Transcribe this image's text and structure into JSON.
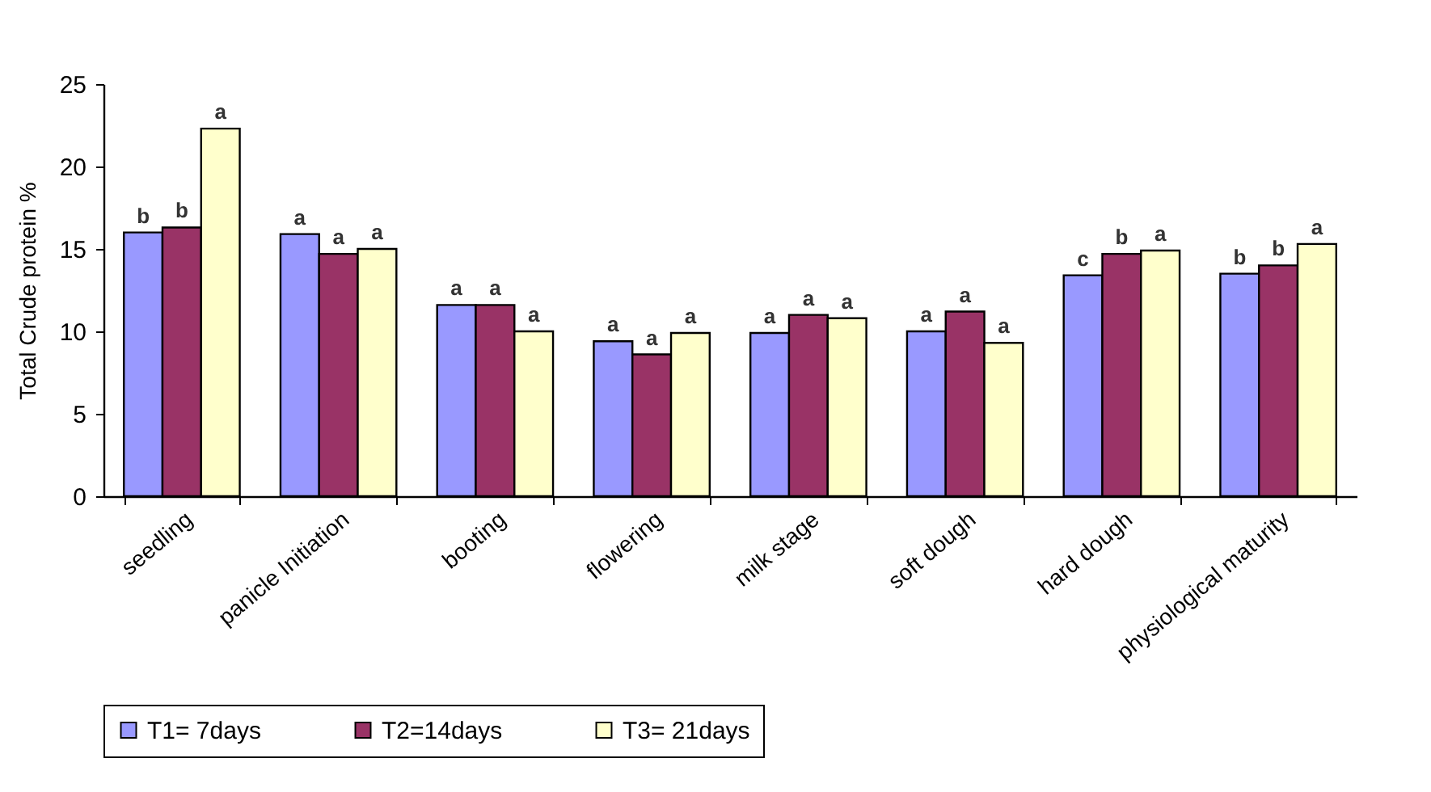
{
  "chart_data": {
    "type": "bar",
    "ylabel": "Total Crude protein %",
    "categories": [
      "seedling",
      "panicle Initiation",
      "booting",
      "flowering",
      "milk stage",
      "soft dough",
      "hard dough",
      "physiological maturity"
    ],
    "series": [
      {
        "name": "T1= 7days",
        "color": "#9999ff",
        "values": [
          16.0,
          15.9,
          11.6,
          9.4,
          9.9,
          10.0,
          13.4,
          13.5
        ],
        "value_labels": [
          "b",
          "a",
          "a",
          "a",
          "a",
          "a",
          "c",
          "b"
        ]
      },
      {
        "name": "T2=14days",
        "color": "#993366",
        "values": [
          16.3,
          14.7,
          11.6,
          8.6,
          11.0,
          11.2,
          14.7,
          14.0
        ],
        "value_labels": [
          "b",
          "a",
          "a",
          "a",
          "a",
          "a",
          "b",
          "b"
        ]
      },
      {
        "name": "T3= 21days",
        "color": "#ffffcc",
        "values": [
          22.3,
          15.0,
          10.0,
          9.9,
          10.8,
          9.3,
          14.9,
          15.3
        ],
        "value_labels": [
          "a",
          "a",
          "a",
          "a",
          "a",
          "a",
          "a",
          "a"
        ]
      }
    ],
    "ylim": [
      0,
      25
    ],
    "yticks": [
      0,
      5,
      10,
      15,
      20,
      25
    ],
    "grid": false,
    "legend": "bottom"
  }
}
